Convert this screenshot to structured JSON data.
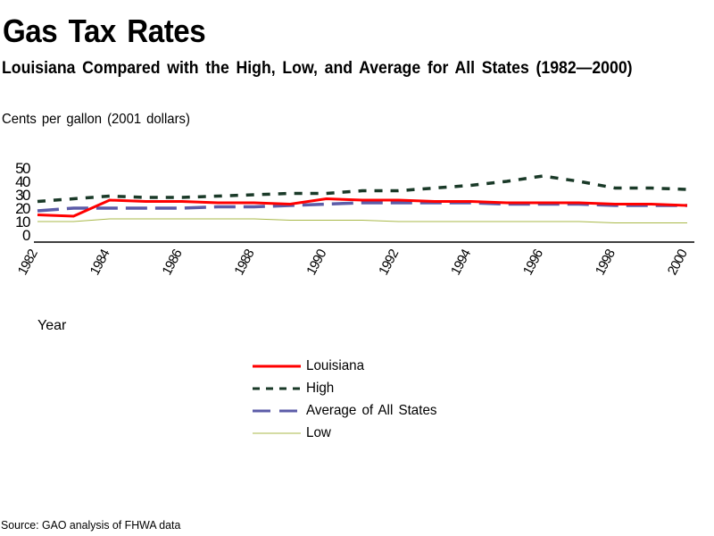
{
  "header": {
    "title": "Gas Tax Rates",
    "subtitle": "Louisiana Compared with the High, Low, and Average for All States (1982—2000)",
    "units": "Cents per gallon (2001 dollars)"
  },
  "footer": {
    "source": "Source: GAO analysis of FHWA data"
  },
  "chart_data": {
    "type": "line",
    "title": "Gas Tax Rates",
    "subtitle": "Louisiana Compared with the High, Low, and Average for All States (1982—2000)",
    "xlabel": "Year",
    "ylabel": "Cents per gallon (2001 dollars)",
    "ylim": [
      0,
      50
    ],
    "yticks": [
      "0",
      "10",
      "20",
      "30",
      "40",
      "50"
    ],
    "xticks": [
      "1982",
      "1984",
      "1986",
      "1988",
      "1990",
      "1992",
      "1994",
      "1996",
      "1998",
      "2000"
    ],
    "grid": false,
    "legend_position": "bottom-center",
    "x": [
      1982,
      1983,
      1984,
      1985,
      1986,
      1987,
      1988,
      1989,
      1990,
      1991,
      1992,
      1993,
      1994,
      1995,
      1996,
      1997,
      1998,
      1999,
      2000
    ],
    "series": [
      {
        "name": "Louisiana",
        "color": "#ff0000",
        "style": "solid",
        "values": [
          15,
          14,
          26,
          25,
          25,
          24,
          24,
          23,
          27,
          26,
          26,
          25,
          25,
          24,
          24,
          24,
          23,
          23,
          22
        ]
      },
      {
        "name": "High",
        "color": "#1a3a28",
        "style": "dotted-dash",
        "values": [
          25,
          27,
          29,
          28,
          28,
          29,
          30,
          31,
          31,
          33,
          33,
          35,
          37,
          40,
          44,
          40,
          35,
          35,
          34
        ]
      },
      {
        "name": "Average of All States",
        "color": "#5c5ca8",
        "style": "dashed",
        "values": [
          18,
          20,
          20,
          20,
          20,
          21,
          21,
          22,
          23,
          24,
          24,
          24,
          24,
          23,
          23,
          23,
          22,
          22,
          22
        ]
      },
      {
        "name": "Low",
        "color": "#a8b848",
        "style": "thin-solid",
        "values": [
          10,
          10,
          12,
          12,
          12,
          12,
          12,
          11,
          11,
          11,
          10,
          10,
          10,
          10,
          10,
          10,
          9,
          9,
          9
        ]
      }
    ]
  }
}
